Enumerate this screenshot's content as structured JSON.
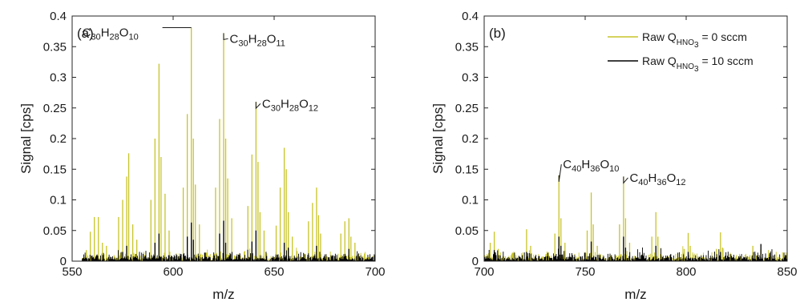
{
  "figure": {
    "colors": {
      "series_0": "#c8c42a",
      "series_10": "#000000",
      "axis": "#262626"
    }
  },
  "chart_data": [
    {
      "type": "line",
      "panel_label": "(a)",
      "xlabel": "m/z",
      "ylabel": "Signal [cps]",
      "xlim": [
        550,
        700
      ],
      "ylim": [
        0,
        0.4
      ],
      "xticks": [
        "550",
        "600",
        "650",
        "700"
      ],
      "yticks": [
        "0",
        "0.05",
        "0.1",
        "0.15",
        "0.2",
        "0.25",
        "0.3",
        "0.35",
        "0.4"
      ],
      "noise_range": [
        555,
        700
      ],
      "series": [
        {
          "key": "hno3_0",
          "color": "#c8c42a",
          "peaks": [
            [
              557,
              0.018
            ],
            [
              559,
              0.048
            ],
            [
              561,
              0.072
            ],
            [
              563,
              0.072
            ],
            [
              565,
              0.03
            ],
            [
              567,
              0.025
            ],
            [
              573,
              0.072
            ],
            [
              575,
              0.1
            ],
            [
              577,
              0.138
            ],
            [
              578,
              0.176
            ],
            [
              580,
              0.06
            ],
            [
              582,
              0.035
            ],
            [
              589,
              0.1
            ],
            [
              591,
              0.2
            ],
            [
              593,
              0.322
            ],
            [
              594,
              0.17
            ],
            [
              596,
              0.11
            ],
            [
              598,
              0.05
            ],
            [
              605,
              0.12
            ],
            [
              607,
              0.24
            ],
            [
              609,
              0.381
            ],
            [
              610,
              0.2
            ],
            [
              611,
              0.125
            ],
            [
              613,
              0.06
            ],
            [
              621,
              0.12
            ],
            [
              623,
              0.232
            ],
            [
              625,
              0.372
            ],
            [
              626,
              0.2
            ],
            [
              627,
              0.135
            ],
            [
              629,
              0.07
            ],
            [
              637,
              0.09
            ],
            [
              639,
              0.174
            ],
            [
              641,
              0.26
            ],
            [
              642,
              0.162
            ],
            [
              643,
              0.08
            ],
            [
              645,
              0.05
            ],
            [
              651,
              0.058
            ],
            [
              653,
              0.12
            ],
            [
              655,
              0.185
            ],
            [
              656,
              0.15
            ],
            [
              657,
              0.08
            ],
            [
              659,
              0.04
            ],
            [
              667,
              0.065
            ],
            [
              669,
              0.095
            ],
            [
              671,
              0.12
            ],
            [
              672,
              0.075
            ],
            [
              673,
              0.045
            ],
            [
              683,
              0.045
            ],
            [
              685,
              0.065
            ],
            [
              687,
              0.07
            ],
            [
              688,
              0.04
            ],
            [
              690,
              0.03
            ]
          ]
        },
        {
          "key": "hno3_10",
          "color": "#000000",
          "peaks": [
            [
              575,
              0.015
            ],
            [
              577,
              0.025
            ],
            [
              591,
              0.03
            ],
            [
              593,
              0.045
            ],
            [
              607,
              0.04
            ],
            [
              609,
              0.063
            ],
            [
              610,
              0.035
            ],
            [
              623,
              0.045
            ],
            [
              625,
              0.066
            ],
            [
              626,
              0.03
            ],
            [
              639,
              0.032
            ],
            [
              641,
              0.05
            ],
            [
              655,
              0.03
            ],
            [
              657,
              0.022
            ],
            [
              671,
              0.025
            ],
            [
              687,
              0.02
            ]
          ]
        }
      ],
      "annotations": [
        {
          "base": "C",
          "n1": "30",
          "h": "H",
          "n2": "28",
          "o": "O",
          "n3": "10",
          "x": 609,
          "y": 0.381,
          "label_x": 555,
          "label_y": 0.373,
          "align": "left"
        },
        {
          "base": "C",
          "n1": "30",
          "h": "H",
          "n2": "28",
          "o": "O",
          "n3": "11",
          "x": 625,
          "y": 0.372,
          "label_x": 628,
          "label_y": 0.363,
          "align": "right"
        },
        {
          "base": "C",
          "n1": "30",
          "h": "H",
          "n2": "28",
          "o": "O",
          "n3": "12",
          "x": 641,
          "y": 0.26,
          "label_x": 644,
          "label_y": 0.257,
          "align": "right"
        }
      ]
    },
    {
      "type": "line",
      "panel_label": "(b)",
      "xlabel": "m/z",
      "ylabel": "Signal [cps]",
      "xlim": [
        700,
        850
      ],
      "ylim": [
        0,
        0.4
      ],
      "xticks": [
        "700",
        "750",
        "800",
        "850"
      ],
      "yticks": [
        "0",
        "0.05",
        "0.1",
        "0.15",
        "0.2",
        "0.25",
        "0.3",
        "0.35",
        "0.4"
      ],
      "noise_range": [
        700,
        850
      ],
      "legend": {
        "position": "top-right",
        "entries": [
          {
            "prefix": "Raw Q",
            "sub": "HNO",
            "subsub": "3",
            "suffix": " = 0 sccm",
            "color": "#c8c42a"
          },
          {
            "prefix": "Raw Q",
            "sub": "HNO",
            "subsub": "3",
            "suffix": " = 10 sccm",
            "color": "#000000"
          }
        ]
      },
      "series": [
        {
          "key": "hno3_0",
          "color": "#c8c42a",
          "peaks": [
            [
              703,
              0.03
            ],
            [
              705,
              0.048
            ],
            [
              707,
              0.02
            ],
            [
              721,
              0.052
            ],
            [
              723,
              0.025
            ],
            [
              735,
              0.045
            ],
            [
              737,
              0.14
            ],
            [
              738,
              0.07
            ],
            [
              740,
              0.03
            ],
            [
              751,
              0.05
            ],
            [
              753,
              0.112
            ],
            [
              754,
              0.06
            ],
            [
              756,
              0.025
            ],
            [
              767,
              0.06
            ],
            [
              769,
              0.138
            ],
            [
              770,
              0.07
            ],
            [
              772,
              0.03
            ],
            [
              783,
              0.04
            ],
            [
              785,
              0.08
            ],
            [
              786,
              0.04
            ],
            [
              799,
              0.02
            ],
            [
              801,
              0.046
            ],
            [
              802,
              0.025
            ],
            [
              815,
              0.02
            ],
            [
              817,
              0.047
            ],
            [
              818,
              0.022
            ],
            [
              833,
              0.025
            ]
          ]
        },
        {
          "key": "hno3_10",
          "color": "#000000",
          "peaks": [
            [
              705,
              0.018
            ],
            [
              721,
              0.015
            ],
            [
              737,
              0.04
            ],
            [
              738,
              0.025
            ],
            [
              753,
              0.032
            ],
            [
              769,
              0.04
            ],
            [
              770,
              0.022
            ],
            [
              785,
              0.025
            ],
            [
              801,
              0.015
            ],
            [
              817,
              0.015
            ],
            [
              837,
              0.028
            ]
          ]
        }
      ],
      "annotations": [
        {
          "base": "C",
          "n1": "40",
          "h": "H",
          "n2": "36",
          "o": "O",
          "n3": "10",
          "x": 737,
          "y": 0.14,
          "label_x": 739,
          "label_y": 0.158,
          "align": "right"
        },
        {
          "base": "C",
          "n1": "40",
          "h": "H",
          "n2": "36",
          "o": "O",
          "n3": "12",
          "x": 769,
          "y": 0.138,
          "label_x": 772,
          "label_y": 0.136,
          "align": "right"
        }
      ]
    }
  ]
}
